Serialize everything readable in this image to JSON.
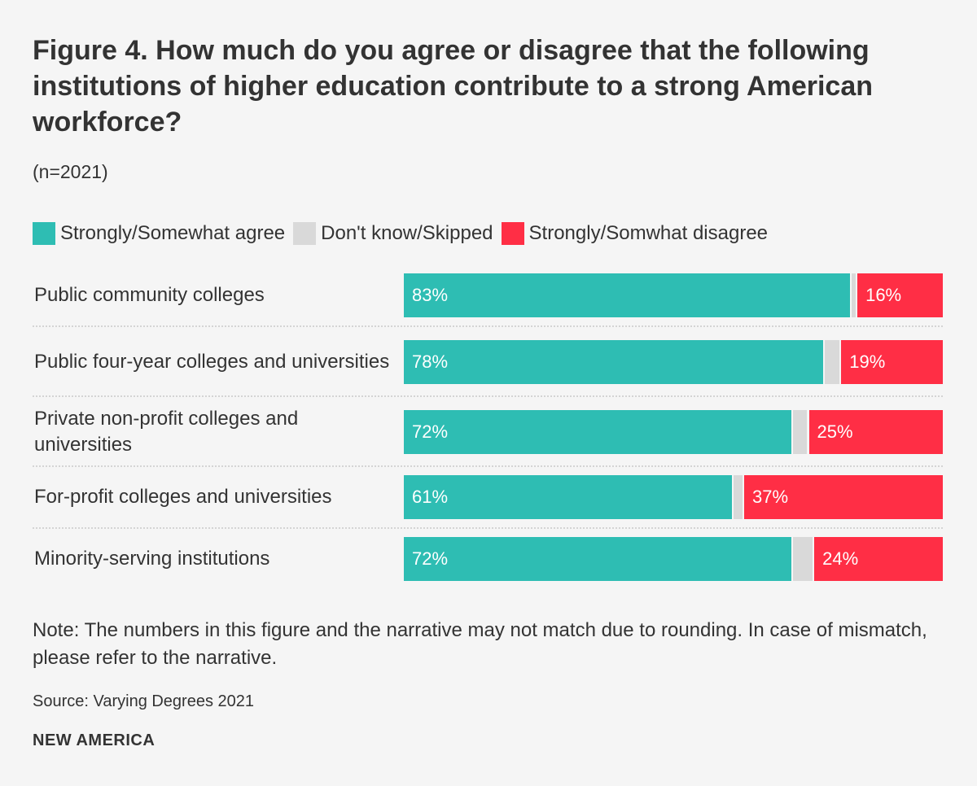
{
  "chart_data": {
    "type": "bar",
    "orientation": "horizontal-stacked",
    "title": "Figure 4. How much do you agree or disagree that the following institutions of higher education contribute to a strong American workforce?",
    "subtitle": "(n=2021)",
    "categories": [
      "Public community colleges",
      "Public four-year colleges and universities",
      "Private non-profit colleges and universities",
      "For-profit colleges and universities",
      "Minority-serving institutions"
    ],
    "series": [
      {
        "name": "Strongly/Somewhat agree",
        "color": "#2ebdb3",
        "values": [
          83,
          78,
          72,
          61,
          72
        ],
        "labels": [
          "83%",
          "78%",
          "72%",
          "61%",
          "72%"
        ]
      },
      {
        "name": "Don't know/Skipped",
        "color": "#d9d9d9",
        "values": [
          1,
          3,
          3,
          2,
          4
        ],
        "labels": [
          "",
          "",
          "",
          "",
          ""
        ]
      },
      {
        "name": "Strongly/Somwhat disagree",
        "color": "#ff2e45",
        "values": [
          16,
          19,
          25,
          37,
          24
        ],
        "labels": [
          "16%",
          "19%",
          "25%",
          "37%",
          "24%"
        ]
      }
    ],
    "xlim": [
      0,
      100
    ],
    "legend_position": "top-left"
  },
  "footer": {
    "note": "Note: The numbers in this figure and the narrative may not match due to rounding. In case of mismatch, please refer to the narrative.",
    "source": "Source: Varying Degrees 2021",
    "brand": "NEW AMERICA"
  }
}
